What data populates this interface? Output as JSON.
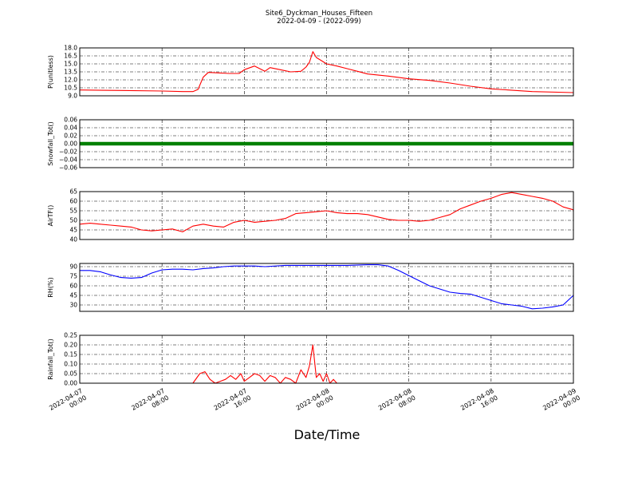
{
  "figure": {
    "title_line1": "Site6_Dyckman_Houses_Fifteen",
    "title_line2": "2022-04-09 - (2022-099)",
    "xlabel": "Date/Time"
  },
  "x_ticks": [
    {
      "line1": "2022-04-07",
      "line2": "00:00"
    },
    {
      "line1": "2022-04-07",
      "line2": "08:00"
    },
    {
      "line1": "2022-04-07",
      "line2": "16:00"
    },
    {
      "line1": "2022-04-08",
      "line2": "00:00"
    },
    {
      "line1": "2022-04-08",
      "line2": "08:00"
    },
    {
      "line1": "2022-04-08",
      "line2": "16:00"
    },
    {
      "line1": "2022-04-09",
      "line2": "00:00"
    }
  ],
  "chart_data": [
    {
      "type": "line",
      "ylabel": "P(unitless)",
      "ylim": [
        9.0,
        18.0
      ],
      "yticks": [
        "9.0",
        "10.5",
        "12.0",
        "13.5",
        "15.0",
        "16.5",
        "18.0"
      ],
      "xlim": [
        "2022-04-07 00:00",
        "2022-04-09 00:00"
      ],
      "grid": true,
      "color": "#ff0000",
      "x": [
        "2022-04-07 00:00",
        "2022-04-07 04:00",
        "2022-04-07 08:00",
        "2022-04-07 10:00",
        "2022-04-07 11:00",
        "2022-04-07 11:30",
        "2022-04-07 12:00",
        "2022-04-07 12:30",
        "2022-04-07 13:30",
        "2022-04-07 14:30",
        "2022-04-07 15:30",
        "2022-04-07 16:00",
        "2022-04-07 17:00",
        "2022-04-07 17:30",
        "2022-04-07 18:00",
        "2022-04-07 18:30",
        "2022-04-07 19:30",
        "2022-04-07 20:30",
        "2022-04-07 21:30",
        "2022-04-07 22:00",
        "2022-04-07 22:20",
        "2022-04-07 22:40",
        "2022-04-07 23:00",
        "2022-04-07 23:30",
        "2022-04-08 00:00",
        "2022-04-08 01:00",
        "2022-04-08 02:00",
        "2022-04-08 03:00",
        "2022-04-08 04:00",
        "2022-04-08 06:00",
        "2022-04-08 08:00",
        "2022-04-08 10:00",
        "2022-04-08 12:00",
        "2022-04-08 14:00",
        "2022-04-08 16:00",
        "2022-04-08 20:00",
        "2022-04-09 00:00"
      ],
      "y": [
        10.1,
        10.0,
        9.9,
        9.8,
        9.8,
        10.2,
        12.5,
        13.4,
        13.3,
        13.2,
        13.2,
        13.9,
        14.6,
        14.1,
        13.6,
        14.3,
        13.9,
        13.5,
        13.6,
        14.4,
        15.3,
        17.3,
        16.2,
        15.6,
        15.0,
        14.6,
        14.1,
        13.6,
        13.1,
        12.7,
        12.2,
        11.9,
        11.4,
        10.8,
        10.3,
        9.8,
        9.6
      ]
    },
    {
      "type": "scatter",
      "ylabel": "Snowfall_Tot()",
      "ylim": [
        -0.06,
        0.06
      ],
      "yticks": [
        "−0.06",
        "−0.04",
        "−0.02",
        "0.00",
        "0.02",
        "0.04",
        "0.06"
      ],
      "xlim": [
        "2022-04-07 00:00",
        "2022-04-09 00:00"
      ],
      "grid": true,
      "color": "#008000",
      "x": [
        "2022-04-07 00:00",
        "2022-04-09 00:00"
      ],
      "y": [
        0.0,
        0.0
      ]
    },
    {
      "type": "line",
      "ylabel": "AirTF()",
      "ylim": [
        40,
        65
      ],
      "yticks": [
        "40",
        "45",
        "50",
        "55",
        "60",
        "65"
      ],
      "xlim": [
        "2022-04-07 00:00",
        "2022-04-09 00:00"
      ],
      "grid": true,
      "color": "#ff0000",
      "x": [
        "2022-04-07 00:00",
        "2022-04-07 01:00",
        "2022-04-07 02:00",
        "2022-04-07 03:00",
        "2022-04-07 04:00",
        "2022-04-07 05:00",
        "2022-04-07 06:00",
        "2022-04-07 07:00",
        "2022-04-07 08:00",
        "2022-04-07 09:00",
        "2022-04-07 10:00",
        "2022-04-07 11:00",
        "2022-04-07 12:00",
        "2022-04-07 13:00",
        "2022-04-07 14:00",
        "2022-04-07 15:00",
        "2022-04-07 16:00",
        "2022-04-07 17:00",
        "2022-04-07 18:00",
        "2022-04-07 19:00",
        "2022-04-07 20:00",
        "2022-04-07 21:00",
        "2022-04-07 22:00",
        "2022-04-07 23:00",
        "2022-04-08 00:00",
        "2022-04-08 01:00",
        "2022-04-08 02:00",
        "2022-04-08 03:00",
        "2022-04-08 04:00",
        "2022-04-08 06:00",
        "2022-04-08 07:00",
        "2022-04-08 08:00",
        "2022-04-08 09:00",
        "2022-04-08 10:00",
        "2022-04-08 11:00",
        "2022-04-08 12:00",
        "2022-04-08 13:00",
        "2022-04-08 14:00",
        "2022-04-08 15:00",
        "2022-04-08 16:00",
        "2022-04-08 17:00",
        "2022-04-08 18:00",
        "2022-04-08 19:00",
        "2022-04-08 20:00",
        "2022-04-08 21:00",
        "2022-04-08 22:00",
        "2022-04-08 23:00",
        "2022-04-09 00:00"
      ],
      "y": [
        48,
        48.5,
        48,
        47.5,
        47,
        46.5,
        45,
        44.5,
        45,
        45.5,
        44,
        47,
        48,
        47,
        46.5,
        49,
        50,
        49,
        49.5,
        50,
        51,
        53.5,
        54,
        54.5,
        55,
        54,
        53.5,
        53.5,
        53,
        50.5,
        50,
        50,
        49.5,
        50,
        51.5,
        53,
        56,
        58,
        60,
        61.5,
        63.5,
        64.5,
        63.5,
        62.5,
        61.5,
        60,
        57,
        55.5
      ]
    },
    {
      "type": "line",
      "ylabel": "RH(%)",
      "ylim": [
        20,
        95
      ],
      "yticks": [
        "30",
        "45",
        "60",
        "75",
        "90"
      ],
      "xlim": [
        "2022-04-07 00:00",
        "2022-04-09 00:00"
      ],
      "grid": true,
      "color": "#0000ff",
      "x": [
        "2022-04-07 00:00",
        "2022-04-07 01:00",
        "2022-04-07 02:00",
        "2022-04-07 03:00",
        "2022-04-07 04:00",
        "2022-04-07 05:00",
        "2022-04-07 06:00",
        "2022-04-07 07:00",
        "2022-04-07 08:00",
        "2022-04-07 09:00",
        "2022-04-07 10:00",
        "2022-04-07 11:00",
        "2022-04-07 12:00",
        "2022-04-07 13:00",
        "2022-04-07 14:00",
        "2022-04-07 15:00",
        "2022-04-07 16:00",
        "2022-04-07 17:00",
        "2022-04-07 18:00",
        "2022-04-07 20:00",
        "2022-04-07 22:00",
        "2022-04-08 00:00",
        "2022-04-08 02:00",
        "2022-04-08 04:00",
        "2022-04-08 05:00",
        "2022-04-08 06:00",
        "2022-04-08 07:00",
        "2022-04-08 08:00",
        "2022-04-08 09:00",
        "2022-04-08 10:00",
        "2022-04-08 11:00",
        "2022-04-08 12:00",
        "2022-04-08 13:00",
        "2022-04-08 14:00",
        "2022-04-08 15:00",
        "2022-04-08 16:00",
        "2022-04-08 17:00",
        "2022-04-08 18:00",
        "2022-04-08 19:00",
        "2022-04-08 20:00",
        "2022-04-08 21:00",
        "2022-04-08 22:00",
        "2022-04-08 23:00",
        "2022-04-09 00:00"
      ],
      "y": [
        84,
        84,
        82,
        77,
        73,
        72,
        73,
        80,
        85,
        86,
        86,
        85,
        87,
        88,
        90,
        91,
        91,
        91,
        90,
        92,
        92,
        92,
        92,
        93,
        93,
        91,
        84,
        76,
        68,
        60,
        55,
        50,
        48,
        47,
        42,
        37,
        32,
        30,
        28,
        24,
        25,
        27,
        30,
        45
      ]
    },
    {
      "type": "line",
      "ylabel": "Rainfall_Tot()",
      "ylim": [
        0.0,
        0.25
      ],
      "yticks": [
        "0.00",
        "0.05",
        "0.10",
        "0.15",
        "0.20",
        "0.25"
      ],
      "xlim": [
        "2022-04-07 00:00",
        "2022-04-09 00:00"
      ],
      "grid": true,
      "color": "#ff0000",
      "x": [
        "2022-04-07 00:00",
        "2022-04-07 11:00",
        "2022-04-07 11:40",
        "2022-04-07 12:10",
        "2022-04-07 12:40",
        "2022-04-07 13:10",
        "2022-04-07 13:40",
        "2022-04-07 14:10",
        "2022-04-07 14:40",
        "2022-04-07 15:10",
        "2022-04-07 15:40",
        "2022-04-07 16:00",
        "2022-04-07 16:30",
        "2022-04-07 17:00",
        "2022-04-07 17:30",
        "2022-04-07 18:00",
        "2022-04-07 18:30",
        "2022-04-07 19:00",
        "2022-04-07 19:30",
        "2022-04-07 20:00",
        "2022-04-07 20:30",
        "2022-04-07 21:00",
        "2022-04-07 21:30",
        "2022-04-07 22:00",
        "2022-04-07 22:20",
        "2022-04-07 22:40",
        "2022-04-07 23:00",
        "2022-04-07 23:20",
        "2022-04-07 23:40",
        "2022-04-08 00:00",
        "2022-04-08 00:20",
        "2022-04-08 00:40",
        "2022-04-08 01:00",
        "2022-04-08 02:00",
        "2022-04-09 00:00"
      ],
      "y": [
        0,
        0,
        0.05,
        0.06,
        0.02,
        0,
        0.01,
        0.02,
        0.04,
        0.02,
        0.05,
        0.01,
        0.03,
        0.05,
        0.04,
        0.01,
        0.04,
        0.03,
        0,
        0.03,
        0.02,
        0,
        0.07,
        0.03,
        0.09,
        0.2,
        0.03,
        0.05,
        0.01,
        0.05,
        0,
        0.02,
        0,
        0,
        0
      ]
    }
  ]
}
